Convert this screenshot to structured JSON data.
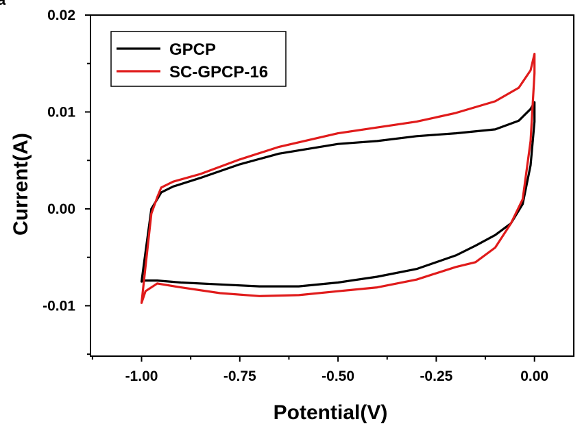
{
  "panel_label": "a",
  "chart_data": {
    "type": "line",
    "title": "",
    "xlabel": "Potential(V)",
    "ylabel": "Current(A)",
    "xlim": [
      -1.13,
      0.1
    ],
    "ylim": [
      -0.0152,
      0.02
    ],
    "xticks": [
      -1.0,
      -0.75,
      -0.5,
      -0.25,
      0.0
    ],
    "xtick_labels": [
      "-1.00",
      "-0.75",
      "-0.50",
      "-0.25",
      "0.00"
    ],
    "yticks": [
      -0.01,
      0.0,
      0.01,
      0.02
    ],
    "ytick_labels": [
      "-0.01",
      "0.00",
      "0.01",
      "0.02"
    ],
    "grid": false,
    "legend_position": "top-left",
    "series": [
      {
        "name": "GPCP",
        "color": "#000000",
        "x": [
          -1.0,
          -0.99,
          -0.975,
          -0.96,
          -0.95,
          -0.92,
          -0.85,
          -0.75,
          -0.65,
          -0.5,
          -0.4,
          -0.3,
          -0.2,
          -0.1,
          -0.04,
          -0.01,
          0.0,
          0.0,
          -0.01,
          -0.03,
          -0.06,
          -0.1,
          -0.15,
          -0.2,
          -0.3,
          -0.4,
          -0.5,
          -0.6,
          -0.7,
          -0.8,
          -0.9,
          -0.96,
          -0.99,
          -1.0
        ],
        "y": [
          -0.0075,
          -0.0045,
          0.0,
          0.001,
          0.0017,
          0.0023,
          0.0032,
          0.0046,
          0.0057,
          0.0067,
          0.007,
          0.0075,
          0.0078,
          0.0082,
          0.0091,
          0.0103,
          0.011,
          0.009,
          0.0045,
          0.0005,
          -0.0015,
          -0.0027,
          -0.0038,
          -0.0048,
          -0.0062,
          -0.007,
          -0.0076,
          -0.008,
          -0.008,
          -0.0078,
          -0.0076,
          -0.0074,
          -0.0074,
          -0.0075
        ]
      },
      {
        "name": "SC-GPCP-16",
        "color": "#e01b1b",
        "x": [
          -1.0,
          -0.99,
          -0.975,
          -0.96,
          -0.95,
          -0.92,
          -0.85,
          -0.75,
          -0.65,
          -0.5,
          -0.4,
          -0.3,
          -0.2,
          -0.1,
          -0.04,
          -0.01,
          0.0,
          0.0,
          -0.01,
          -0.03,
          -0.06,
          -0.1,
          -0.15,
          -0.2,
          -0.3,
          -0.4,
          -0.5,
          -0.6,
          -0.7,
          -0.8,
          -0.9,
          -0.96,
          -0.99,
          -1.0
        ],
        "y": [
          -0.0097,
          -0.006,
          -0.0005,
          0.0012,
          0.0022,
          0.0028,
          0.0036,
          0.0051,
          0.0064,
          0.0078,
          0.0084,
          0.009,
          0.0099,
          0.0111,
          0.0125,
          0.0143,
          0.016,
          0.014,
          0.007,
          0.001,
          -0.0015,
          -0.004,
          -0.0055,
          -0.006,
          -0.0073,
          -0.0081,
          -0.0085,
          -0.0089,
          -0.009,
          -0.0087,
          -0.0081,
          -0.0077,
          -0.0085,
          -0.0097
        ]
      }
    ]
  }
}
